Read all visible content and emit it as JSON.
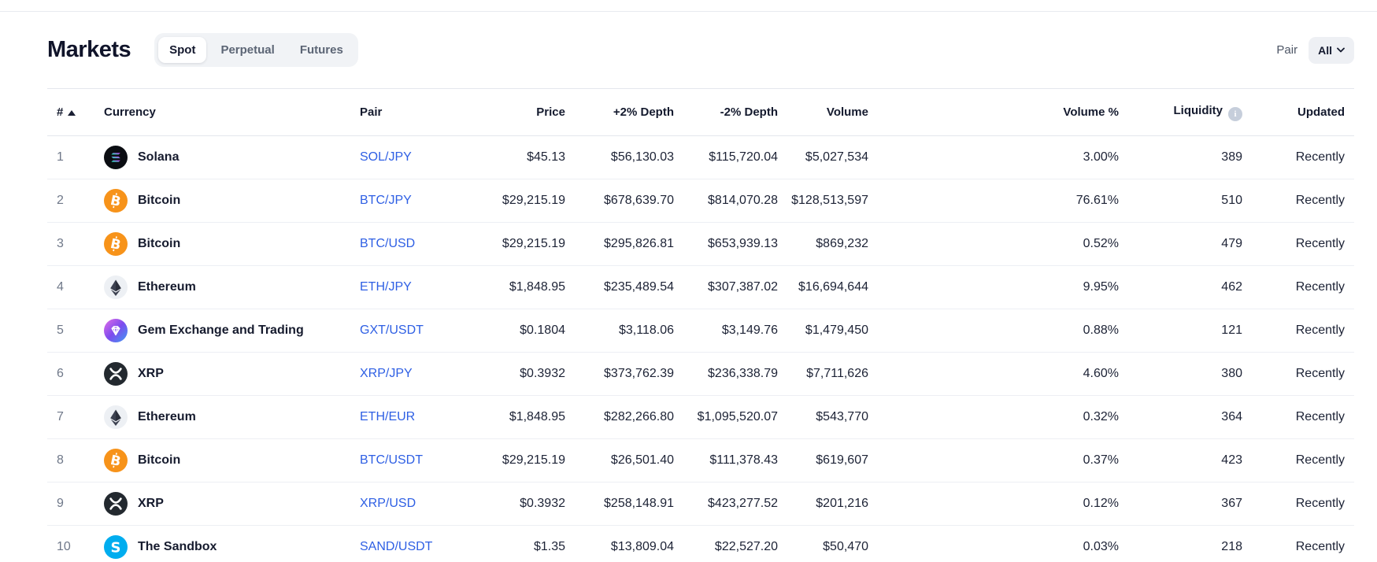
{
  "header": {
    "title": "Markets",
    "tabs": [
      {
        "label": "Spot",
        "active": true
      },
      {
        "label": "Perpetual",
        "active": false
      },
      {
        "label": "Futures",
        "active": false
      }
    ],
    "pair_filter": {
      "label": "Pair",
      "value": "All"
    }
  },
  "table": {
    "columns": [
      {
        "label": "#",
        "sort": "asc"
      },
      {
        "label": "Currency"
      },
      {
        "label": "Pair"
      },
      {
        "label": "Price"
      },
      {
        "label": "+2% Depth"
      },
      {
        "label": "-2% Depth"
      },
      {
        "label": "Volume"
      },
      {
        "label": "Volume %"
      },
      {
        "label": "Liquidity",
        "info": true
      },
      {
        "label": "Updated"
      }
    ],
    "rows": [
      {
        "rank": "1",
        "currency": "Solana",
        "icon": "solana",
        "pair": "SOL/JPY",
        "price": "$45.13",
        "depth_plus": "$56,130.03",
        "depth_minus": "$115,720.04",
        "volume": "$5,027,534",
        "volume_pct": "3.00%",
        "liquidity": "389",
        "updated": "Recently"
      },
      {
        "rank": "2",
        "currency": "Bitcoin",
        "icon": "bitcoin",
        "pair": "BTC/JPY",
        "price": "$29,215.19",
        "depth_plus": "$678,639.70",
        "depth_minus": "$814,070.28",
        "volume": "$128,513,597",
        "volume_pct": "76.61%",
        "liquidity": "510",
        "updated": "Recently"
      },
      {
        "rank": "3",
        "currency": "Bitcoin",
        "icon": "bitcoin",
        "pair": "BTC/USD",
        "price": "$29,215.19",
        "depth_plus": "$295,826.81",
        "depth_minus": "$653,939.13",
        "volume": "$869,232",
        "volume_pct": "0.52%",
        "liquidity": "479",
        "updated": "Recently"
      },
      {
        "rank": "4",
        "currency": "Ethereum",
        "icon": "ethereum",
        "pair": "ETH/JPY",
        "price": "$1,848.95",
        "depth_plus": "$235,489.54",
        "depth_minus": "$307,387.02",
        "volume": "$16,694,644",
        "volume_pct": "9.95%",
        "liquidity": "462",
        "updated": "Recently"
      },
      {
        "rank": "5",
        "currency": "Gem Exchange and Trading",
        "icon": "gem",
        "pair": "GXT/USDT",
        "price": "$0.1804",
        "depth_plus": "$3,118.06",
        "depth_minus": "$3,149.76",
        "volume": "$1,479,450",
        "volume_pct": "0.88%",
        "liquidity": "121",
        "updated": "Recently"
      },
      {
        "rank": "6",
        "currency": "XRP",
        "icon": "xrp",
        "pair": "XRP/JPY",
        "price": "$0.3932",
        "depth_plus": "$373,762.39",
        "depth_minus": "$236,338.79",
        "volume": "$7,711,626",
        "volume_pct": "4.60%",
        "liquidity": "380",
        "updated": "Recently"
      },
      {
        "rank": "7",
        "currency": "Ethereum",
        "icon": "ethereum",
        "pair": "ETH/EUR",
        "price": "$1,848.95",
        "depth_plus": "$282,266.80",
        "depth_minus": "$1,095,520.07",
        "volume": "$543,770",
        "volume_pct": "0.32%",
        "liquidity": "364",
        "updated": "Recently"
      },
      {
        "rank": "8",
        "currency": "Bitcoin",
        "icon": "bitcoin",
        "pair": "BTC/USDT",
        "price": "$29,215.19",
        "depth_plus": "$26,501.40",
        "depth_minus": "$111,378.43",
        "volume": "$619,607",
        "volume_pct": "0.37%",
        "liquidity": "423",
        "updated": "Recently"
      },
      {
        "rank": "9",
        "currency": "XRP",
        "icon": "xrp",
        "pair": "XRP/USD",
        "price": "$0.3932",
        "depth_plus": "$258,148.91",
        "depth_minus": "$423,277.52",
        "volume": "$201,216",
        "volume_pct": "0.12%",
        "liquidity": "367",
        "updated": "Recently"
      },
      {
        "rank": "10",
        "currency": "The Sandbox",
        "icon": "sandbox",
        "pair": "SAND/USDT",
        "price": "$1.35",
        "depth_plus": "$13,809.04",
        "depth_minus": "$22,527.20",
        "volume": "$50,470",
        "volume_pct": "0.03%",
        "liquidity": "218",
        "updated": "Recently"
      }
    ]
  },
  "colors": {
    "link_blue": "#2e5fe4",
    "text_dark": "#10142a",
    "muted_gray": "#6f7889",
    "divider": "#e4e7ed",
    "tab_bg": "#f1f3f6",
    "bitcoin_orange": "#f7931a",
    "xrp_dark": "#23292f",
    "sandbox_blue": "#00adef",
    "solana_gradient": [
      "#00ffa3",
      "#dc1fff"
    ],
    "gem_gradient": [
      "#e46ee8",
      "#7d4bee",
      "#3e9cf2"
    ]
  }
}
